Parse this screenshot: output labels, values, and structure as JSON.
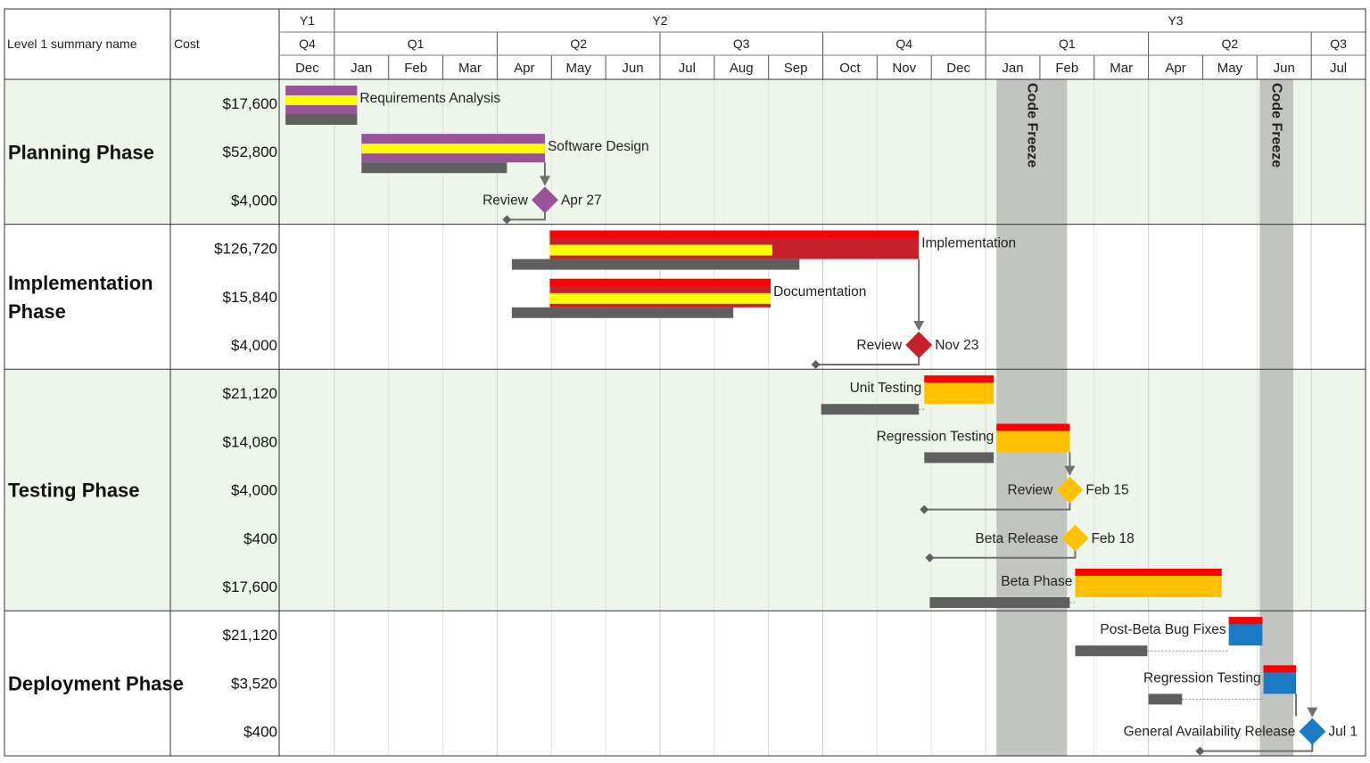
{
  "header": {
    "summary_label": "Level 1 summary name",
    "cost_label": "Cost",
    "years": [
      {
        "label": "Y1",
        "start": 0,
        "end": 1
      },
      {
        "label": "Y2",
        "start": 1,
        "end": 13
      },
      {
        "label": "Y3",
        "start": 13,
        "end": 20
      }
    ],
    "quarters": [
      {
        "label": "Q4",
        "start": 0,
        "end": 1
      },
      {
        "label": "Q1",
        "start": 1,
        "end": 4
      },
      {
        "label": "Q2",
        "start": 4,
        "end": 7
      },
      {
        "label": "Q3",
        "start": 7,
        "end": 10
      },
      {
        "label": "Q4",
        "start": 10,
        "end": 13
      },
      {
        "label": "Q1",
        "start": 13,
        "end": 16
      },
      {
        "label": "Q2",
        "start": 16,
        "end": 19
      },
      {
        "label": "Q3",
        "start": 19,
        "end": 20
      }
    ],
    "months": [
      "Dec",
      "Jan",
      "Feb",
      "Mar",
      "Apr",
      "May",
      "Jun",
      "Jul",
      "Aug",
      "Sep",
      "Oct",
      "Nov",
      "Dec",
      "Jan",
      "Feb",
      "Mar",
      "Apr",
      "May",
      "Jun",
      "Jul"
    ]
  },
  "colors": {
    "planning": "#985498",
    "implementation": "#c8202a",
    "testing": "#ffc000",
    "deployment": "#1a7ac4",
    "progress_top": "#ff0000",
    "progress_yellow": "#ffff00",
    "baseline": "#5f5f5f",
    "freeze": "#c2c4c0",
    "band": "#eef6ec",
    "connector": "#707070"
  },
  "chart_data": {
    "type": "gantt",
    "time_axis": "months (0 = start of Y1 Dec)",
    "phases": [
      {
        "name": "Planning Phase",
        "banded": true,
        "tasks": [
          {
            "name": "Requirements Analysis",
            "cost": "$17,600",
            "kind": "bar",
            "color": "planning",
            "start": 0.1,
            "end": 1.42,
            "progress": 1.42,
            "baseline": [
              0.1,
              1.42
            ]
          },
          {
            "name": "Software Design",
            "cost": "$52,800",
            "kind": "bar",
            "color": "planning",
            "start": 1.5,
            "end": 4.88,
            "progress": 4.88,
            "baseline": [
              1.5,
              4.18
            ]
          },
          {
            "name": "Review",
            "cost": "$4,000",
            "kind": "milestone",
            "color": "planning",
            "at": 4.88,
            "date": "Apr 27",
            "baseline_at": 4.18
          }
        ]
      },
      {
        "name": "Implementation Phase",
        "banded": false,
        "tasks": [
          {
            "name": "Implementation",
            "cost": "$126,720",
            "kind": "bar",
            "color": "implementation",
            "start": 4.97,
            "end": 11.77,
            "progress": 9.07,
            "baseline": [
              4.27,
              9.57
            ]
          },
          {
            "name": "Documentation",
            "cost": "$15,840",
            "kind": "bar",
            "color": "implementation",
            "start": 4.97,
            "end": 9.04,
            "progress": 9.04,
            "baseline": [
              4.27,
              8.35
            ]
          },
          {
            "name": "Review",
            "cost": "$4,000",
            "kind": "milestone",
            "color": "implementation",
            "at": 11.77,
            "date": "Nov 23",
            "baseline_at": 9.87
          }
        ]
      },
      {
        "name": "Testing Phase",
        "banded": true,
        "tasks": [
          {
            "name": "Unit Testing",
            "cost": "$21,120",
            "kind": "bar",
            "color": "testing",
            "start": 11.87,
            "end": 13.15,
            "progress": 11.87,
            "baseline": [
              9.97,
              11.77
            ]
          },
          {
            "name": "Regression Testing",
            "cost": "$14,080",
            "kind": "bar",
            "color": "testing",
            "start": 13.2,
            "end": 14.55,
            "progress": 13.2,
            "baseline": [
              11.87,
              13.15
            ]
          },
          {
            "name": "Review",
            "cost": "$4,000",
            "kind": "milestone",
            "color": "testing",
            "at": 14.55,
            "date": "Feb 15",
            "baseline_at": 11.87
          },
          {
            "name": "Beta Release",
            "cost": "$400",
            "kind": "milestone",
            "color": "testing",
            "at": 14.65,
            "date": "Feb 18",
            "baseline_at": 11.97
          },
          {
            "name": "Beta Phase",
            "cost": "$17,600",
            "kind": "bar",
            "color": "testing",
            "start": 14.65,
            "end": 17.35,
            "progress": 14.65,
            "baseline": [
              11.97,
              14.55
            ]
          }
        ]
      },
      {
        "name": "Deployment Phase",
        "banded": false,
        "tasks": [
          {
            "name": "Post-Beta Bug Fixes",
            "cost": "$21,120",
            "kind": "bar",
            "color": "deployment",
            "start": 17.48,
            "end": 18.1,
            "progress": 17.48,
            "baseline": [
              14.65,
              15.98
            ]
          },
          {
            "name": "Regression Testing",
            "cost": "$3,520",
            "kind": "bar",
            "color": "deployment",
            "start": 18.12,
            "end": 18.72,
            "progress": 18.12,
            "baseline": [
              16.0,
              16.62
            ]
          },
          {
            "name": "General Availability Release",
            "cost": "$400",
            "kind": "milestone",
            "color": "deployment",
            "at": 19.02,
            "date": "Jul 1",
            "baseline_at": 16.95
          }
        ]
      }
    ],
    "freezes": [
      {
        "label": "Code Freeze",
        "start": 13.2,
        "end": 14.5
      },
      {
        "label": "Code Freeze",
        "start": 18.05,
        "end": 18.67
      }
    ]
  }
}
